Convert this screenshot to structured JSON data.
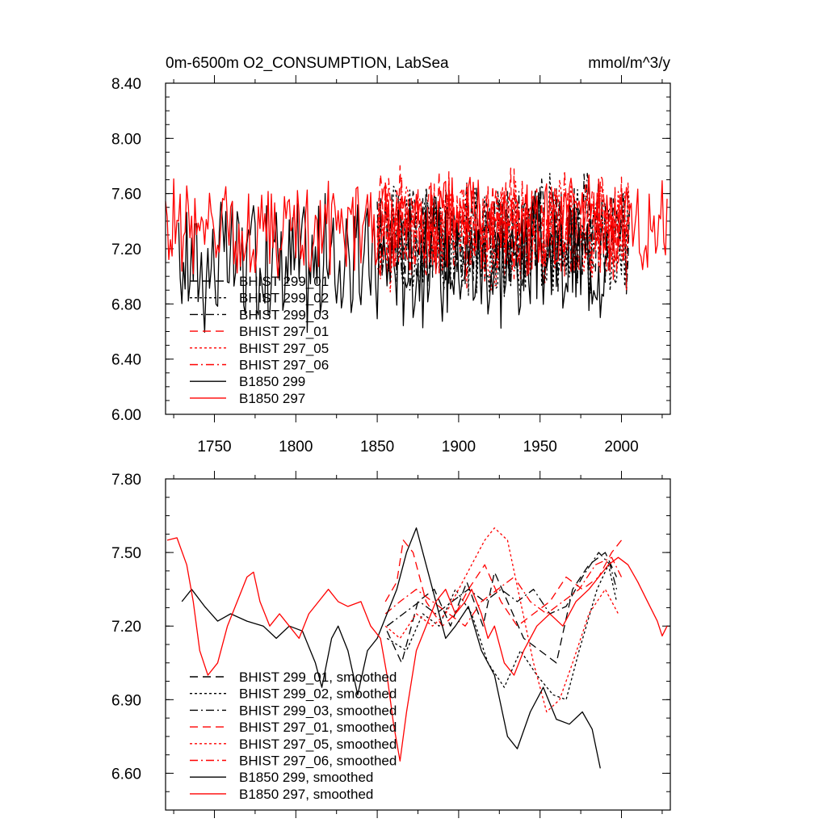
{
  "chart_data": [
    {
      "type": "line",
      "title": "0m-6500m O2_CONSUMPTION, LabSea",
      "units": "mmol/m^3/y",
      "xlabel": "",
      "ylabel": "",
      "xlim": [
        1720,
        2030
      ],
      "ylim": [
        6.0,
        8.4
      ],
      "xticks": [
        1750,
        1800,
        1850,
        1900,
        1950,
        2000
      ],
      "xtick_labels": [
        "1750",
        "1800",
        "1850",
        "1900",
        "1950",
        "2000"
      ],
      "yticks": [
        6.0,
        6.4,
        6.8,
        7.2,
        7.6,
        8.0,
        8.4
      ],
      "ytick_labels": [
        "6.00",
        "6.40",
        "6.80",
        "7.20",
        "7.60",
        "8.00",
        "8.40"
      ],
      "legend_position": "lower-left",
      "series": [
        {
          "name": "BHIST 299_01",
          "color": "#000000",
          "dash": "long-dash",
          "x_start": 1850,
          "x_end": 2005,
          "mean": 7.28,
          "amp": 0.45,
          "seed": 11
        },
        {
          "name": "BHIST 299_02",
          "color": "#000000",
          "dash": "dot",
          "x_start": 1850,
          "x_end": 2005,
          "mean": 7.25,
          "amp": 0.5,
          "seed": 12
        },
        {
          "name": "BHIST 299_03",
          "color": "#000000",
          "dash": "dash-dot",
          "x_start": 1850,
          "x_end": 2005,
          "mean": 7.3,
          "amp": 0.45,
          "seed": 13
        },
        {
          "name": "BHIST 297_01",
          "color": "#ff0000",
          "dash": "long-dash",
          "x_start": 1850,
          "x_end": 2005,
          "mean": 7.35,
          "amp": 0.45,
          "seed": 14
        },
        {
          "name": "BHIST 297_05",
          "color": "#ff0000",
          "dash": "dot",
          "x_start": 1850,
          "x_end": 2005,
          "mean": 7.3,
          "amp": 0.45,
          "seed": 15
        },
        {
          "name": "BHIST 297_06",
          "color": "#ff0000",
          "dash": "dash-dot",
          "x_start": 1850,
          "x_end": 2005,
          "mean": 7.32,
          "amp": 0.45,
          "seed": 16
        },
        {
          "name": "B1850 299",
          "color": "#000000",
          "dash": "solid",
          "x_start": 1728,
          "x_end": 1990,
          "mean": 7.1,
          "amp": 0.55,
          "seed": 17
        },
        {
          "name": "B1850 297",
          "color": "#ff0000",
          "dash": "solid",
          "x_start": 1720,
          "x_end": 2028,
          "mean": 7.35,
          "amp": 0.4,
          "seed": 18
        }
      ]
    },
    {
      "type": "line",
      "title": "",
      "xlabel": "",
      "ylabel": "",
      "xlim": [
        1720,
        2030
      ],
      "ylim": [
        6.45,
        7.8
      ],
      "xticks": [
        1750,
        1800,
        1850,
        1900,
        1950,
        2000
      ],
      "xtick_labels": [],
      "yticks": [
        6.6,
        6.9,
        7.2,
        7.5,
        7.8
      ],
      "ytick_labels": [
        "6.60",
        "6.90",
        "7.20",
        "7.50",
        "7.80"
      ],
      "legend_position": "lower-left",
      "series": [
        {
          "name": "BHIST 299_01, smoothed",
          "color": "#000000",
          "dash": "long-dash",
          "points": [
            [
              1856,
              7.18
            ],
            [
              1865,
              7.05
            ],
            [
              1875,
              7.3
            ],
            [
              1885,
              7.35
            ],
            [
              1895,
              7.2
            ],
            [
              1905,
              7.38
            ],
            [
              1915,
              7.2
            ],
            [
              1922,
              7.42
            ],
            [
              1930,
              7.3
            ],
            [
              1940,
              7.15
            ],
            [
              1950,
              7.1
            ],
            [
              1960,
              7.05
            ],
            [
              1970,
              7.35
            ],
            [
              1980,
              7.45
            ],
            [
              1990,
              7.5
            ],
            [
              1997,
              7.4
            ]
          ]
        },
        {
          "name": "BHIST 299_02, smoothed",
          "color": "#000000",
          "dash": "dot",
          "points": [
            [
              1856,
              7.15
            ],
            [
              1868,
              7.1
            ],
            [
              1878,
              7.25
            ],
            [
              1888,
              7.2
            ],
            [
              1898,
              7.35
            ],
            [
              1908,
              7.25
            ],
            [
              1918,
              7.05
            ],
            [
              1928,
              6.95
            ],
            [
              1938,
              7.1
            ],
            [
              1948,
              7.0
            ],
            [
              1958,
              6.92
            ],
            [
              1966,
              6.9
            ],
            [
              1974,
              7.1
            ],
            [
              1985,
              7.35
            ],
            [
              1992,
              7.45
            ],
            [
              1997,
              7.3
            ]
          ]
        },
        {
          "name": "BHIST 299_03, smoothed",
          "color": "#000000",
          "dash": "dash-dot",
          "points": [
            [
              1856,
              7.2
            ],
            [
              1866,
              7.25
            ],
            [
              1876,
              7.3
            ],
            [
              1886,
              7.25
            ],
            [
              1896,
              7.3
            ],
            [
              1906,
              7.35
            ],
            [
              1916,
              7.3
            ],
            [
              1926,
              7.35
            ],
            [
              1936,
              7.3
            ],
            [
              1946,
              7.35
            ],
            [
              1956,
              7.25
            ],
            [
              1966,
              7.28
            ],
            [
              1976,
              7.4
            ],
            [
              1986,
              7.5
            ],
            [
              1993,
              7.45
            ],
            [
              1997,
              7.35
            ]
          ]
        },
        {
          "name": "BHIST 297_01, smoothed",
          "color": "#ff0000",
          "dash": "long-dash",
          "points": [
            [
              1855,
              7.3
            ],
            [
              1862,
              7.38
            ],
            [
              1866,
              7.55
            ],
            [
              1872,
              7.5
            ],
            [
              1880,
              7.3
            ],
            [
              1890,
              7.2
            ],
            [
              1898,
              7.25
            ],
            [
              1906,
              7.35
            ],
            [
              1916,
              7.45
            ],
            [
              1926,
              7.3
            ],
            [
              1936,
              7.2
            ],
            [
              1946,
              7.25
            ],
            [
              1956,
              7.3
            ],
            [
              1966,
              7.4
            ],
            [
              1976,
              7.35
            ],
            [
              1986,
              7.4
            ],
            [
              1994,
              7.5
            ],
            [
              2000,
              7.55
            ]
          ]
        },
        {
          "name": "BHIST 297_05, smoothed",
          "color": "#ff0000",
          "dash": "dot",
          "points": [
            [
              1855,
              7.2
            ],
            [
              1864,
              7.15
            ],
            [
              1874,
              7.25
            ],
            [
              1884,
              7.2
            ],
            [
              1892,
              7.25
            ],
            [
              1900,
              7.35
            ],
            [
              1908,
              7.45
            ],
            [
              1916,
              7.55
            ],
            [
              1922,
              7.6
            ],
            [
              1930,
              7.55
            ],
            [
              1938,
              7.3
            ],
            [
              1946,
              7.05
            ],
            [
              1954,
              6.85
            ],
            [
              1962,
              6.9
            ],
            [
              1970,
              7.05
            ],
            [
              1980,
              7.25
            ],
            [
              1990,
              7.35
            ],
            [
              1998,
              7.25
            ]
          ]
        },
        {
          "name": "BHIST 297_06, smoothed",
          "color": "#ff0000",
          "dash": "dash-dot",
          "points": [
            [
              1855,
              7.25
            ],
            [
              1864,
              7.3
            ],
            [
              1874,
              7.35
            ],
            [
              1884,
              7.3
            ],
            [
              1894,
              7.25
            ],
            [
              1904,
              7.2
            ],
            [
              1914,
              7.3
            ],
            [
              1924,
              7.35
            ],
            [
              1934,
              7.4
            ],
            [
              1944,
              7.3
            ],
            [
              1954,
              7.25
            ],
            [
              1964,
              7.3
            ],
            [
              1974,
              7.35
            ],
            [
              1984,
              7.45
            ],
            [
              1994,
              7.48
            ],
            [
              2000,
              7.4
            ]
          ]
        },
        {
          "name": "B1850 299, smoothed",
          "color": "#000000",
          "dash": "solid",
          "points": [
            [
              1730,
              7.3
            ],
            [
              1736,
              7.35
            ],
            [
              1744,
              7.28
            ],
            [
              1752,
              7.22
            ],
            [
              1760,
              7.25
            ],
            [
              1770,
              7.22
            ],
            [
              1780,
              7.2
            ],
            [
              1788,
              7.15
            ],
            [
              1796,
              7.2
            ],
            [
              1804,
              7.18
            ],
            [
              1812,
              7.05
            ],
            [
              1816,
              6.95
            ],
            [
              1822,
              7.15
            ],
            [
              1826,
              7.2
            ],
            [
              1832,
              7.1
            ],
            [
              1838,
              6.92
            ],
            [
              1844,
              7.1
            ],
            [
              1850,
              7.15
            ],
            [
              1856,
              7.25
            ],
            [
              1862,
              7.35
            ],
            [
              1868,
              7.5
            ],
            [
              1874,
              7.6
            ],
            [
              1880,
              7.45
            ],
            [
              1886,
              7.3
            ],
            [
              1892,
              7.15
            ],
            [
              1898,
              7.2
            ],
            [
              1906,
              7.28
            ],
            [
              1914,
              7.1
            ],
            [
              1922,
              7.0
            ],
            [
              1930,
              6.75
            ],
            [
              1936,
              6.7
            ],
            [
              1944,
              6.85
            ],
            [
              1952,
              6.95
            ],
            [
              1960,
              6.82
            ],
            [
              1968,
              6.8
            ],
            [
              1976,
              6.85
            ],
            [
              1982,
              6.78
            ],
            [
              1987,
              6.62
            ]
          ]
        },
        {
          "name": "B1850 297, smoothed",
          "color": "#ff0000",
          "dash": "solid",
          "points": [
            [
              1721,
              7.55
            ],
            [
              1727,
              7.56
            ],
            [
              1733,
              7.45
            ],
            [
              1737,
              7.3
            ],
            [
              1741,
              7.1
            ],
            [
              1746,
              7.0
            ],
            [
              1752,
              7.05
            ],
            [
              1758,
              7.2
            ],
            [
              1764,
              7.3
            ],
            [
              1770,
              7.4
            ],
            [
              1774,
              7.42
            ],
            [
              1778,
              7.3
            ],
            [
              1784,
              7.2
            ],
            [
              1790,
              7.25
            ],
            [
              1796,
              7.2
            ],
            [
              1802,
              7.15
            ],
            [
              1808,
              7.25
            ],
            [
              1814,
              7.3
            ],
            [
              1820,
              7.35
            ],
            [
              1826,
              7.3
            ],
            [
              1832,
              7.28
            ],
            [
              1840,
              7.3
            ],
            [
              1846,
              7.2
            ],
            [
              1852,
              7.15
            ],
            [
              1856,
              7.0
            ],
            [
              1860,
              6.8
            ],
            [
              1864,
              6.65
            ],
            [
              1868,
              6.85
            ],
            [
              1874,
              7.1
            ],
            [
              1880,
              7.2
            ],
            [
              1886,
              7.3
            ],
            [
              1892,
              7.35
            ],
            [
              1898,
              7.25
            ],
            [
              1904,
              7.3
            ],
            [
              1908,
              7.35
            ],
            [
              1914,
              7.25
            ],
            [
              1918,
              7.15
            ],
            [
              1922,
              7.2
            ],
            [
              1928,
              7.05
            ],
            [
              1934,
              7.0
            ],
            [
              1940,
              7.1
            ],
            [
              1948,
              7.2
            ],
            [
              1956,
              7.25
            ],
            [
              1964,
              7.2
            ],
            [
              1972,
              7.3
            ],
            [
              1980,
              7.35
            ],
            [
              1986,
              7.4
            ],
            [
              1992,
              7.45
            ],
            [
              1998,
              7.48
            ],
            [
              2004,
              7.45
            ],
            [
              2010,
              7.38
            ],
            [
              2016,
              7.3
            ],
            [
              2022,
              7.22
            ],
            [
              2025,
              7.16
            ],
            [
              2028,
              7.2
            ]
          ]
        }
      ]
    }
  ]
}
